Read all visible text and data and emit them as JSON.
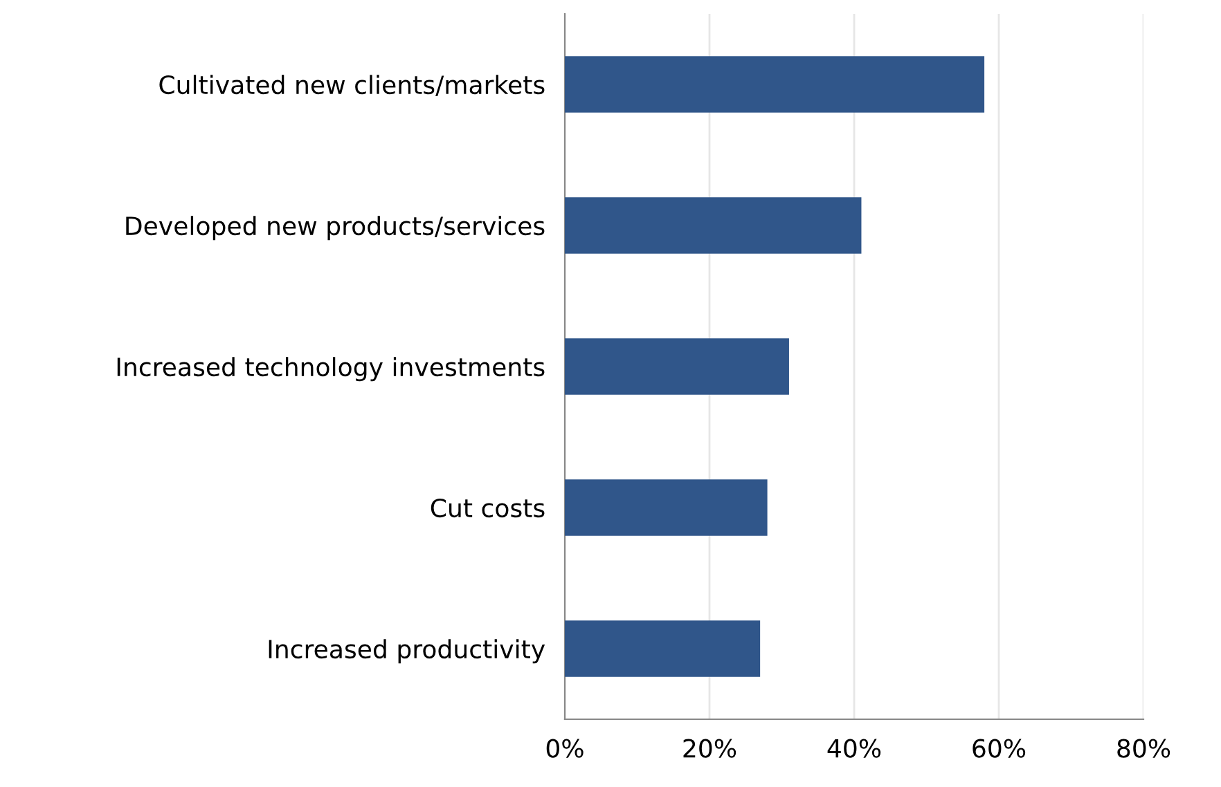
{
  "chart_data": {
    "type": "bar",
    "orientation": "horizontal",
    "categories": [
      "Cultivated new clients/markets",
      "Developed new products/services",
      "Increased technology investments",
      "Cut costs",
      "Increased productivity"
    ],
    "values": [
      58,
      41,
      31,
      28,
      27
    ],
    "color": "#30568a",
    "xlim": [
      0,
      80
    ],
    "xticks": [
      {
        "value": 0,
        "label": "0%"
      },
      {
        "value": 20,
        "label": "20%"
      },
      {
        "value": 40,
        "label": "40%"
      },
      {
        "value": 60,
        "label": "60%"
      },
      {
        "value": 80,
        "label": "80%"
      }
    ],
    "grid": "x"
  }
}
